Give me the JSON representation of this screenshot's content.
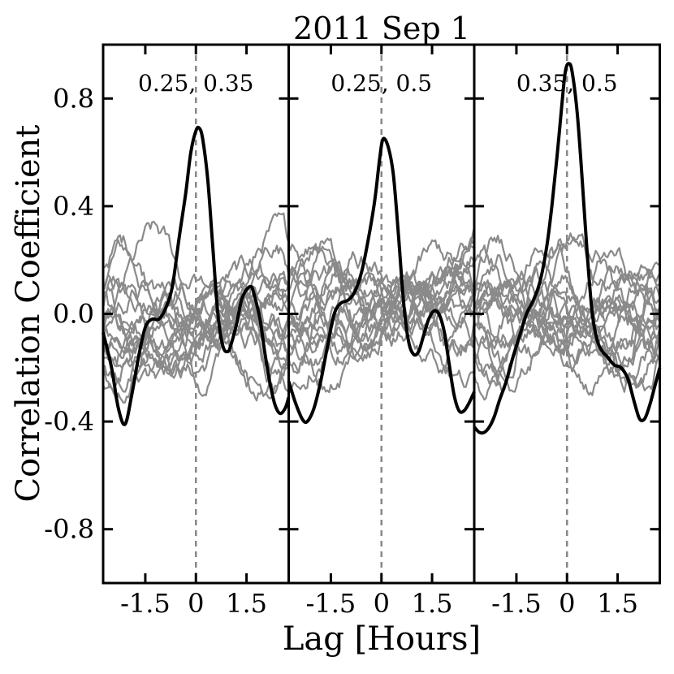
{
  "chart_data": {
    "type": "line",
    "title": "2011 Sep 1",
    "xlabel": "Lag [Hours]",
    "ylabel": "Correlation Coefficient",
    "xlim": [
      -2.75,
      2.75
    ],
    "ylim": [
      -1.0,
      1.0
    ],
    "x_ticks": [
      -1.5,
      0,
      1.5
    ],
    "x_tick_labels": [
      "-1.5",
      "0",
      "1.5"
    ],
    "y_ticks": [
      -0.8,
      -0.4,
      0.0,
      0.4,
      0.8
    ],
    "y_tick_labels": [
      "-0.8",
      "-0.4",
      "0.0",
      "0.4",
      "0.8"
    ],
    "zero_lag_line": {
      "x": 0,
      "style": "dashed",
      "color": "#888888"
    },
    "colors": {
      "main_curve": "#000000",
      "null_curves": "#8a8a8a"
    },
    "null_curve_count_per_panel": 18,
    "panels": [
      {
        "label": "0.25, 0.35",
        "main_curve": {
          "x": [
            -2.75,
            -2.5,
            -2.3,
            -2.1,
            -1.9,
            -1.7,
            -1.5,
            -1.3,
            -1.1,
            -0.9,
            -0.7,
            -0.5,
            -0.3,
            -0.15,
            0.0,
            0.1,
            0.2,
            0.35,
            0.5,
            0.65,
            0.8,
            0.95,
            1.05,
            1.2,
            1.35,
            1.5,
            1.65,
            1.75,
            1.9,
            2.05,
            2.2,
            2.35,
            2.5,
            2.65,
            2.75
          ],
          "y": [
            -0.07,
            -0.2,
            -0.35,
            -0.41,
            -0.3,
            -0.16,
            -0.05,
            -0.02,
            -0.02,
            0.02,
            0.1,
            0.28,
            0.45,
            0.6,
            0.68,
            0.69,
            0.65,
            0.5,
            0.25,
            0.0,
            -0.12,
            -0.14,
            -0.11,
            -0.04,
            0.05,
            0.09,
            0.1,
            0.06,
            -0.02,
            -0.15,
            -0.26,
            -0.34,
            -0.37,
            -0.35,
            -0.31
          ]
        }
      },
      {
        "label": "0.25, 0.5",
        "main_curve": {
          "x": [
            -2.75,
            -2.55,
            -2.35,
            -2.2,
            -2.0,
            -1.8,
            -1.6,
            -1.4,
            -1.2,
            -1.0,
            -0.8,
            -0.6,
            -0.4,
            -0.2,
            -0.05,
            0.05,
            0.2,
            0.35,
            0.5,
            0.65,
            0.8,
            0.95,
            1.1,
            1.25,
            1.4,
            1.55,
            1.7,
            1.85,
            2.0,
            2.15,
            2.3,
            2.45,
            2.6,
            2.75
          ],
          "y": [
            -0.25,
            -0.33,
            -0.39,
            -0.4,
            -0.35,
            -0.25,
            -0.12,
            0.0,
            0.04,
            0.05,
            0.08,
            0.15,
            0.27,
            0.42,
            0.58,
            0.65,
            0.62,
            0.52,
            0.3,
            0.05,
            -0.1,
            -0.15,
            -0.14,
            -0.08,
            -0.02,
            0.01,
            0.0,
            -0.06,
            -0.18,
            -0.3,
            -0.36,
            -0.36,
            -0.33,
            -0.29
          ]
        }
      },
      {
        "label": "0.35, 0.5",
        "main_curve": {
          "x": [
            -2.75,
            -2.6,
            -2.45,
            -2.3,
            -2.15,
            -2.0,
            -1.8,
            -1.6,
            -1.4,
            -1.2,
            -1.0,
            -0.8,
            -0.6,
            -0.45,
            -0.3,
            -0.15,
            -0.05,
            0.05,
            0.15,
            0.3,
            0.45,
            0.6,
            0.75,
            0.9,
            1.05,
            1.2,
            1.4,
            1.6,
            1.8,
            2.0,
            2.15,
            2.3,
            2.45,
            2.6,
            2.75
          ],
          "y": [
            -0.42,
            -0.44,
            -0.44,
            -0.42,
            -0.38,
            -0.32,
            -0.25,
            -0.16,
            -0.08,
            0.0,
            0.05,
            0.12,
            0.25,
            0.4,
            0.58,
            0.78,
            0.9,
            0.93,
            0.9,
            0.75,
            0.5,
            0.22,
            0.0,
            -0.1,
            -0.14,
            -0.16,
            -0.19,
            -0.2,
            -0.24,
            -0.33,
            -0.39,
            -0.39,
            -0.34,
            -0.27,
            -0.2
          ]
        }
      }
    ]
  }
}
